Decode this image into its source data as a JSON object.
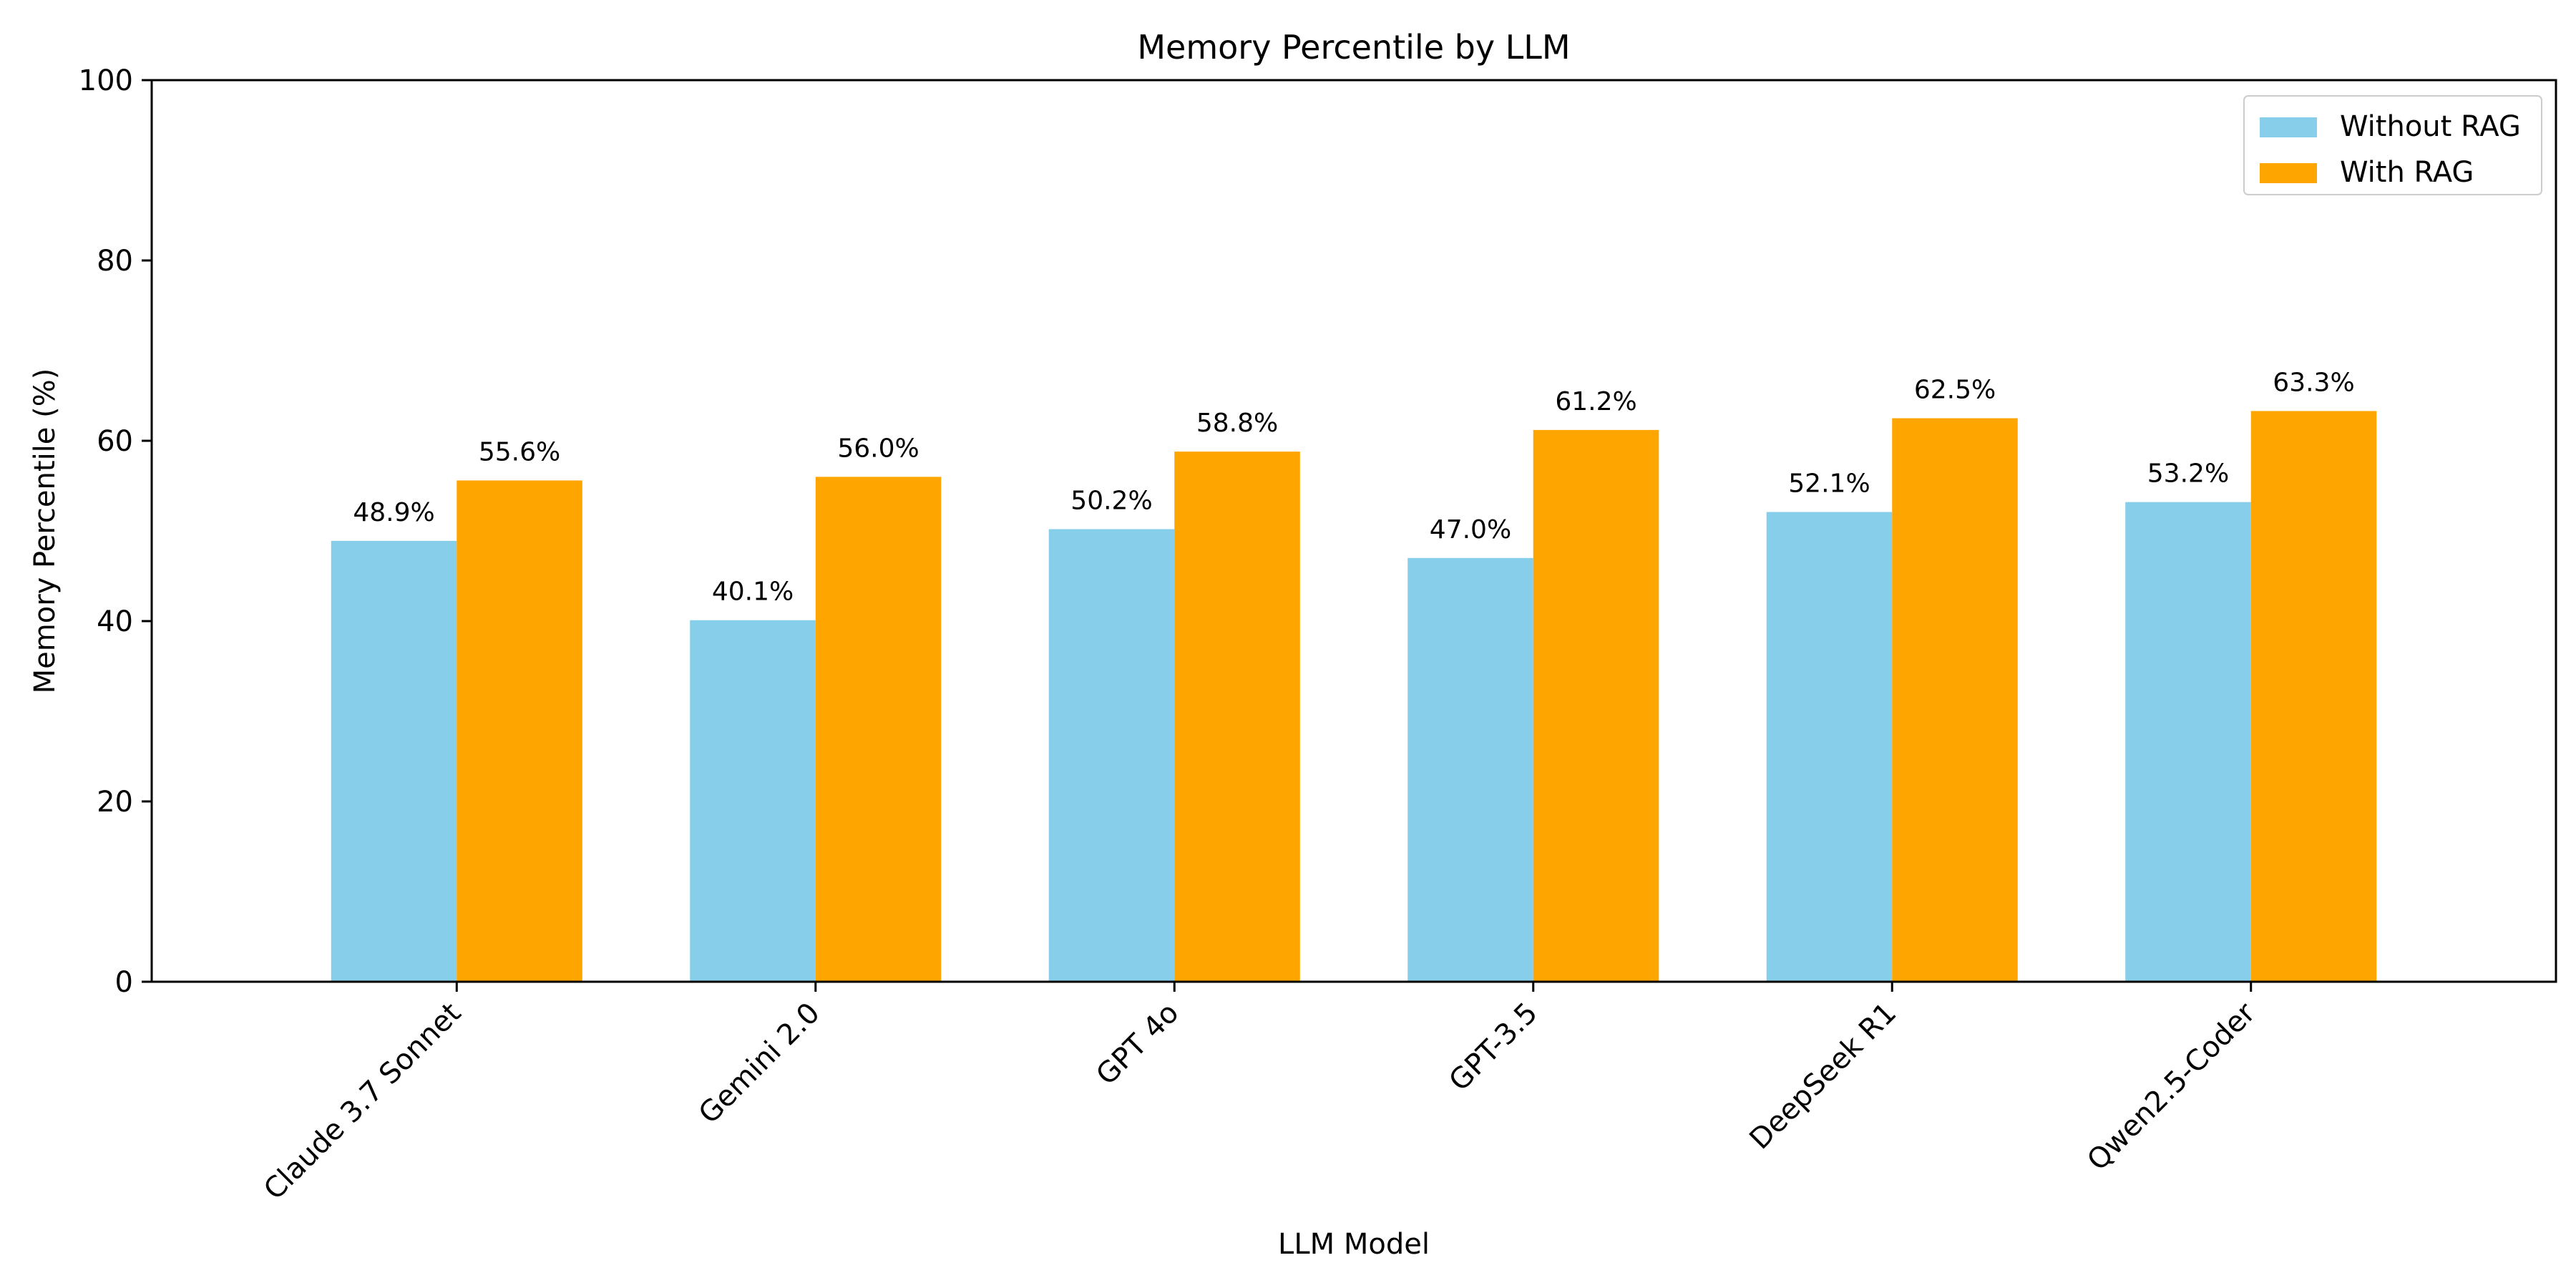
{
  "chart_data": {
    "type": "bar",
    "title": "Memory Percentile by LLM",
    "xlabel": "LLM Model",
    "ylabel": "Memory Percentile (%)",
    "ylim": [
      0,
      100
    ],
    "yticks": [
      0,
      20,
      40,
      60,
      80,
      100
    ],
    "categories": [
      "Claude 3.7 Sonnet",
      "Gemini 2.0",
      "GPT 4o",
      "GPT-3.5",
      "DeepSeek R1",
      "Qwen2.5-Coder"
    ],
    "series": [
      {
        "name": "Without RAG",
        "color": "#87CEEB",
        "values": [
          48.9,
          40.1,
          50.2,
          47.0,
          52.1,
          53.2
        ],
        "labels": [
          "48.9%",
          "40.1%",
          "50.2%",
          "47.0%",
          "52.1%",
          "53.2%"
        ]
      },
      {
        "name": "With RAG",
        "color": "#FFA500",
        "values": [
          55.6,
          56.0,
          58.8,
          61.2,
          62.5,
          63.3
        ],
        "labels": [
          "55.6%",
          "56.0%",
          "58.8%",
          "61.2%",
          "62.5%",
          "63.3%"
        ]
      }
    ],
    "grid": false,
    "legend_position": "top-right"
  }
}
